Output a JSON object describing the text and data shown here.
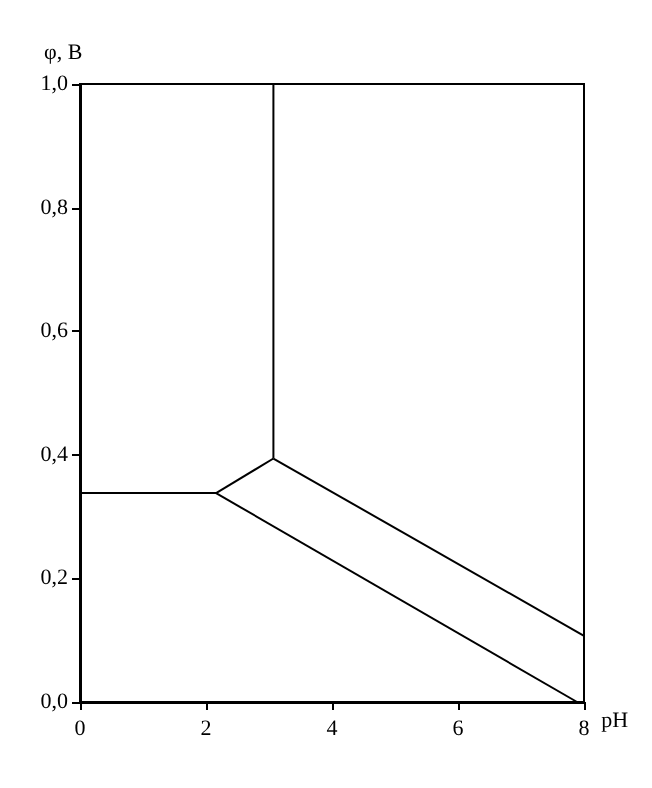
{
  "chart_data": {
    "type": "line",
    "xlabel": "pH",
    "ylabel": "φ, В",
    "series": [
      {
        "color": "#000000",
        "x": [
          0,
          2.16
        ],
        "values": [
          0.338,
          0.338
        ]
      },
      {
        "color": "#000000",
        "x": [
          2.16,
          3.07
        ],
        "values": [
          0.338,
          0.394
        ]
      },
      {
        "color": "#000000",
        "x": [
          3.07,
          3.07
        ],
        "values": [
          0.394,
          1.0
        ]
      },
      {
        "color": "#000000",
        "x": [
          3.07,
          8
        ],
        "values": [
          0.394,
          0.107
        ]
      },
      {
        "color": "#000000",
        "x": [
          2.16,
          7.89
        ],
        "values": [
          0.338,
          0.0
        ]
      }
    ],
    "xlim": [
      0,
      8
    ],
    "xticks": [
      0,
      2,
      4,
      6,
      8
    ],
    "ylim": [
      0,
      1.0
    ],
    "yticks": [
      {
        "value": 0,
        "label": "0,0"
      },
      {
        "value": 0.2,
        "label": "0,2"
      },
      {
        "value": 0.4,
        "label": "0,4"
      },
      {
        "value": 0.6,
        "label": "0,6"
      },
      {
        "value": 0.8,
        "label": "0,8"
      },
      {
        "value": 1.0,
        "label": "1,0"
      }
    ],
    "grid": false,
    "marker": "none",
    "line_style": "solid"
  }
}
